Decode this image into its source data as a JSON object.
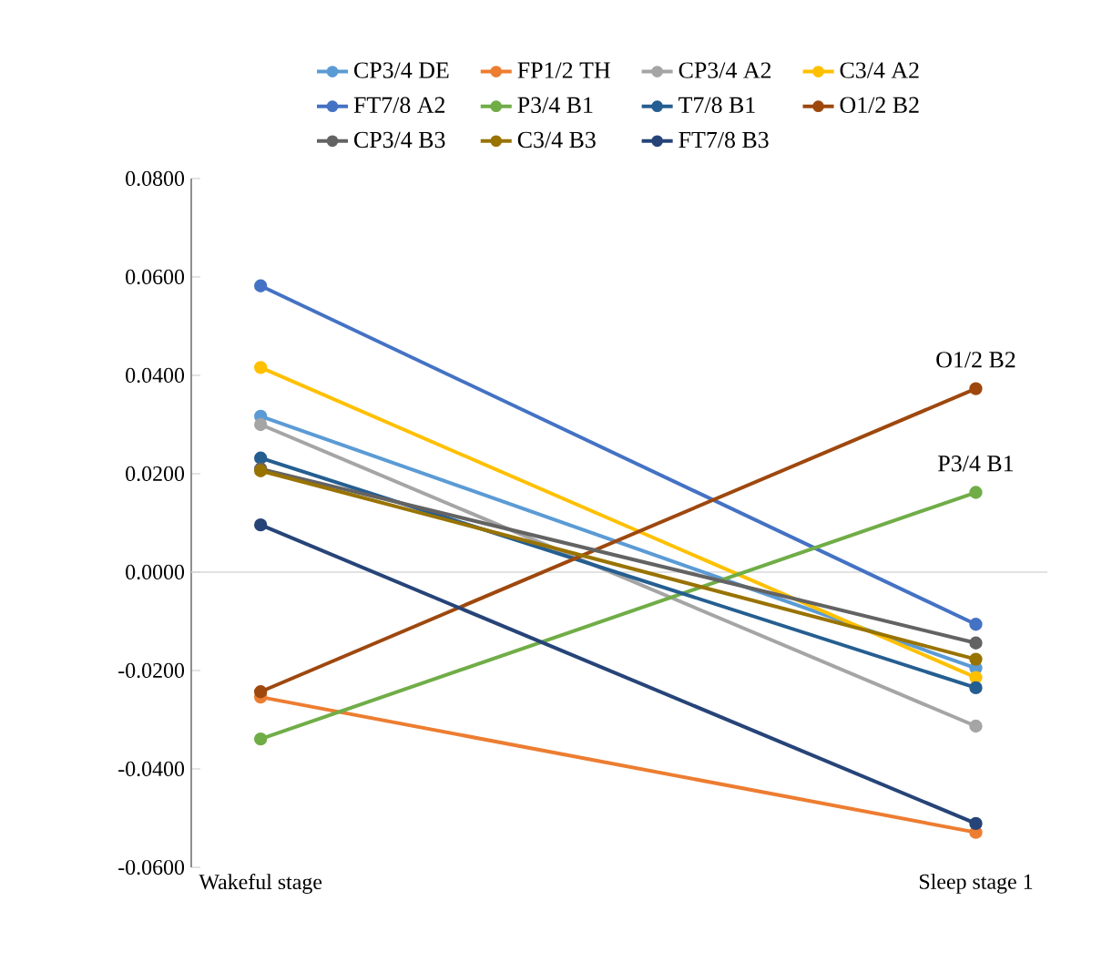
{
  "chart_data": {
    "type": "line",
    "categories": [
      "Wakeful stage",
      "Sleep stage 1"
    ],
    "series": [
      {
        "name": "CP3/4 DE",
        "color": "#5b9bd5",
        "values": [
          0.0317,
          -0.0195
        ]
      },
      {
        "name": "FP1/2 TH",
        "color": "#ed7d31",
        "values": [
          -0.0254,
          -0.0529
        ]
      },
      {
        "name": "CP3/4 A2",
        "color": "#a5a5a5",
        "values": [
          0.03,
          -0.0313
        ]
      },
      {
        "name": "C3/4 A2",
        "color": "#ffc000",
        "values": [
          0.0416,
          -0.0214
        ]
      },
      {
        "name": "FT7/8 A2",
        "color": "#4472c4",
        "values": [
          0.0582,
          -0.0106
        ]
      },
      {
        "name": "P3/4 B1",
        "color": "#70ad47",
        "values": [
          -0.0339,
          0.0162
        ]
      },
      {
        "name": "T7/8 B1",
        "color": "#255e91",
        "values": [
          0.0232,
          -0.0235
        ]
      },
      {
        "name": "O1/2 B2",
        "color": "#9e480e",
        "values": [
          -0.0243,
          0.0373
        ]
      },
      {
        "name": "CP3/4 B3",
        "color": "#636363",
        "values": [
          0.021,
          -0.0144
        ]
      },
      {
        "name": "C3/4 B3",
        "color": "#997300",
        "values": [
          0.0206,
          -0.0177
        ]
      },
      {
        "name": "FT7/8 B3",
        "color": "#264478",
        "values": [
          0.0096,
          -0.0511
        ]
      }
    ],
    "ylim": [
      -0.06,
      0.08
    ],
    "yticks": [
      {
        "value": -0.06,
        "label": "-0.0600"
      },
      {
        "value": -0.04,
        "label": "-0.0400"
      },
      {
        "value": -0.02,
        "label": "-0.0200"
      },
      {
        "value": 0,
        "label": "0.0000"
      },
      {
        "value": 0.02,
        "label": "0.0200"
      },
      {
        "value": 0.04,
        "label": "0.0400"
      },
      {
        "value": 0.06,
        "label": "0.0600"
      },
      {
        "value": 0.08,
        "label": "0.0800"
      }
    ],
    "ref_lines": [
      {
        "axis": "y",
        "value": 0,
        "color": "#d9d9d9"
      }
    ],
    "annotations": [
      {
        "text": "O1/2 B2",
        "x": "Sleep stage 1",
        "y": 0.0373
      },
      {
        "text": "P3/4 B1",
        "x": "Sleep stage 1",
        "y": 0.0162
      }
    ],
    "legend": "top",
    "marker": "circle",
    "line_style": "solid",
    "grid": false
  }
}
